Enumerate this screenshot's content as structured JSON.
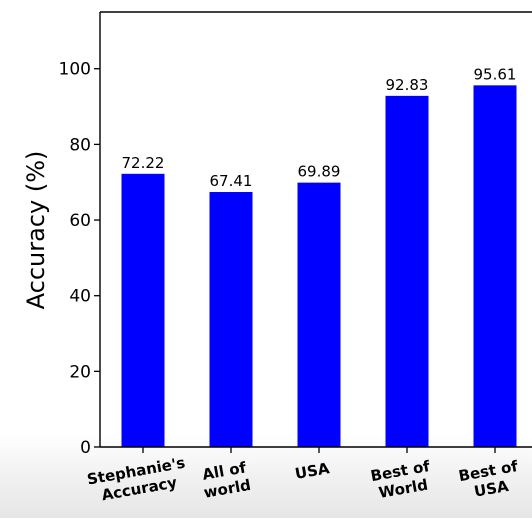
{
  "chart_data": {
    "type": "bar",
    "title": "",
    "xlabel": "",
    "ylabel": "Accuracy (%)",
    "categories": [
      [
        "Stephanie's",
        "Accuracy"
      ],
      [
        "All of",
        "world"
      ],
      [
        "USA"
      ],
      [
        "Best of",
        "World"
      ],
      [
        "Best of",
        "USA"
      ]
    ],
    "values": [
      72.22,
      67.41,
      69.89,
      92.83,
      95.61
    ],
    "value_labels": [
      "72.22",
      "67.41",
      "69.89",
      "92.83",
      "95.61"
    ],
    "yticks": [
      0,
      20,
      40,
      60,
      80,
      100
    ],
    "ylim": [
      0,
      115
    ],
    "bar_color": "#0000ff",
    "grid": false,
    "legend": "none"
  }
}
